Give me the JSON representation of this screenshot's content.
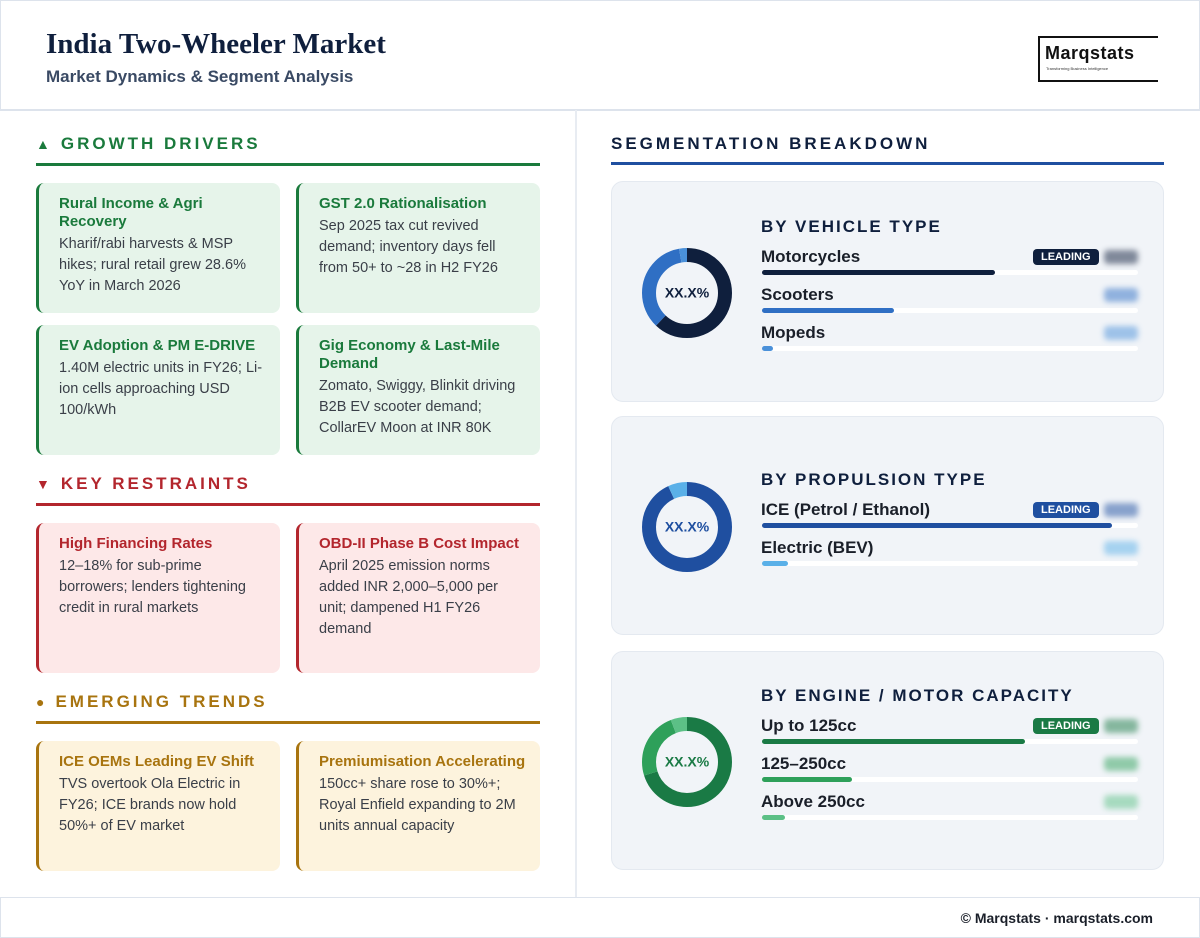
{
  "header": {
    "title": "India Two-Wheeler Market",
    "subtitle": "Market Dynamics & Segment Analysis",
    "logo": {
      "name": "Marqstats",
      "tagline": "Transforming Business Intelligence"
    }
  },
  "sections": [
    {
      "icon": "▲",
      "title": "GROWTH DRIVERS",
      "cards": [
        {
          "title": "Rural Income & Agri Recovery",
          "text": "Kharif/rabi harvests & MSP hikes; rural retail grew 28.6% YoY in March 2026"
        },
        {
          "title": "GST 2.0 Rationalisation",
          "text": "Sep 2025 tax cut revived demand; inventory days fell from 50+ to ~28 in H2 FY26"
        },
        {
          "title": "EV Adoption & PM E-DRIVE",
          "text": "1.40M electric units in FY26; Li-ion cells approaching USD 100/kWh"
        },
        {
          "title": "Gig Economy & Last-Mile Demand",
          "text": "Zomato, Swiggy, Blinkit driving B2B EV scooter demand; CollarEV Moon at INR 80K"
        }
      ]
    },
    {
      "icon": "▼",
      "title": "KEY RESTRAINTS",
      "cards": [
        {
          "title": "High Financing Rates",
          "text": "12–18% for sub-prime borrowers; lenders tightening credit in rural markets"
        },
        {
          "title": "OBD-II Phase B Cost Impact",
          "text": "April 2025 emission norms added INR 2,000–5,000 per unit; dampened H1 FY26 demand"
        }
      ]
    },
    {
      "icon": "●",
      "title": "EMERGING TRENDS",
      "cards": [
        {
          "title": "ICE OEMs Leading EV Shift",
          "text": "TVS overtook Ola Electric in FY26; ICE brands now hold 50%+ of EV market"
        },
        {
          "title": "Premiumisation Accelerating",
          "text": "150cc+ share rose to 30%+; Royal Enfield expanding to 2M units annual capacity"
        }
      ]
    }
  ],
  "segmentation": {
    "title": "SEGMENTATION BREAKDOWN",
    "center_label": "XX.X%",
    "leading_label": "LEADING",
    "groups": [
      {
        "title": "BY VEHICLE TYPE",
        "segments": [
          {
            "name": "Motorcycles",
            "value": 62,
            "color": "#0f1f3d"
          },
          {
            "name": "Scooters",
            "value": 35,
            "color": "#2f6fc4"
          },
          {
            "name": "Mopeds",
            "value": 3,
            "color": "#4a90d9"
          }
        ]
      },
      {
        "title": "BY PROPULSION TYPE",
        "segments": [
          {
            "name": "ICE (Petrol / Ethanol)",
            "value": 93,
            "color": "#1f4fa0"
          },
          {
            "name": "Electric (BEV)",
            "value": 7,
            "color": "#5ab0e8"
          }
        ]
      },
      {
        "title": "BY ENGINE / MOTOR CAPACITY",
        "segments": [
          {
            "name": "Up to 125cc",
            "value": 70,
            "color": "#1a7a45"
          },
          {
            "name": "125–250cc",
            "value": 24,
            "color": "#2ea05a"
          },
          {
            "name": "Above 250cc",
            "value": 6,
            "color": "#5cc086"
          }
        ]
      }
    ]
  },
  "footer": "© Marqstats · marqstats.com"
}
